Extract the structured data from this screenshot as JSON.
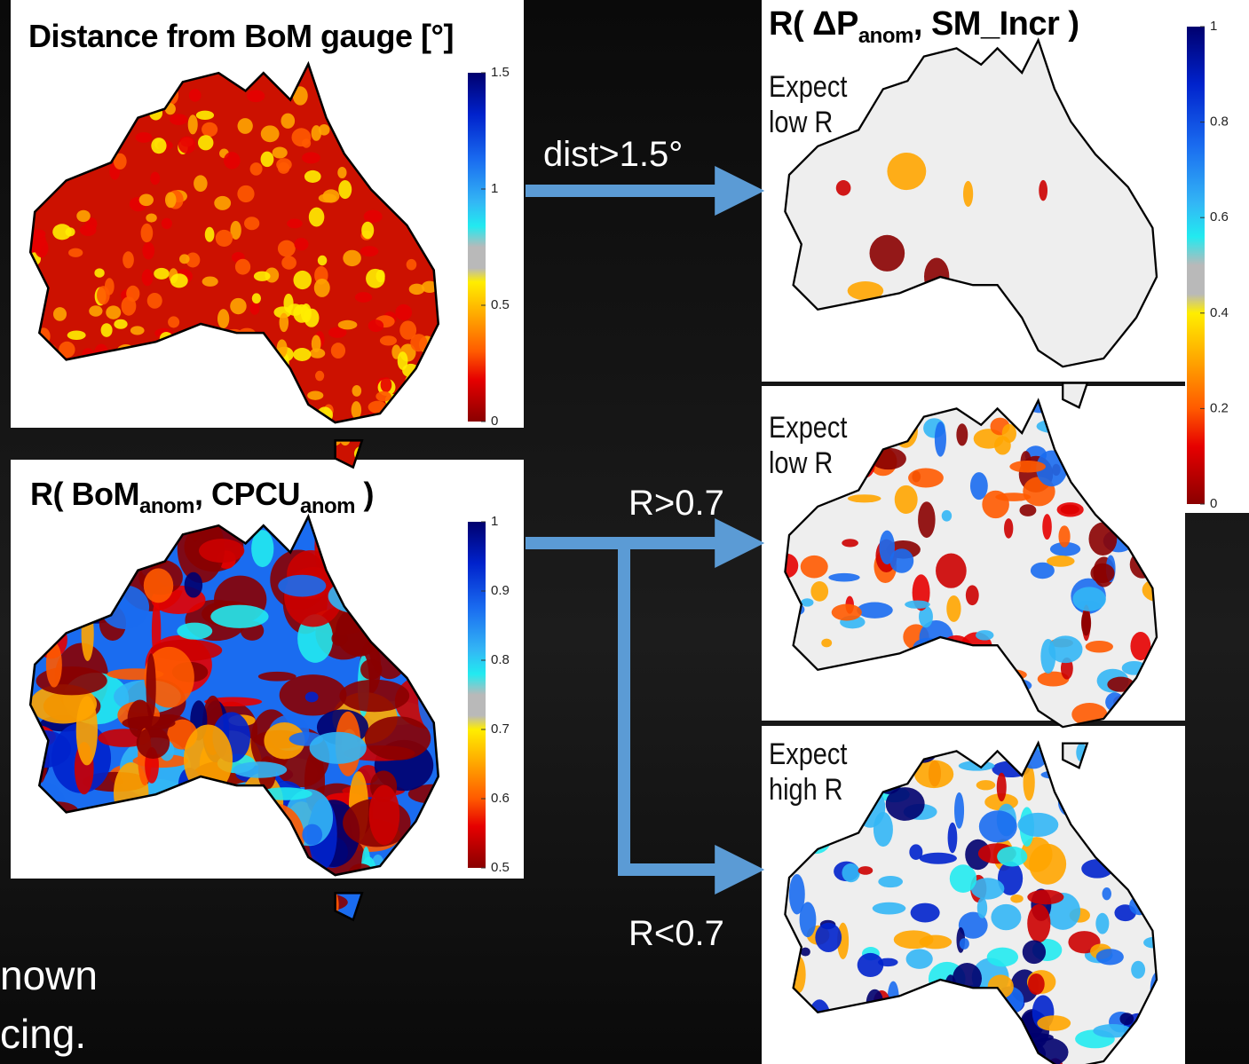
{
  "left_panels": [
    {
      "title_parts": [
        "Distance from BoM gauge [°]"
      ],
      "colorbar_ticks": [
        1.5,
        1,
        0.5,
        0
      ]
    },
    {
      "title_parts": [
        "R( BoM",
        "anom",
        ", CPCU",
        "anom",
        " )"
      ],
      "colorbar_ticks": [
        1,
        0.9,
        0.8,
        0.7,
        0.6,
        0.5
      ]
    }
  ],
  "right_title_parts": [
    "R( ΔP",
    "anom",
    ", SM_Incr )"
  ],
  "right_colorbar_ticks": [
    1,
    0.8,
    0.6,
    0.4,
    0.2,
    0
  ],
  "right_panels": [
    {
      "note": [
        "Expect",
        "low R"
      ]
    },
    {
      "note": [
        "Expect",
        "low R"
      ]
    },
    {
      "note": [
        "Expect",
        "high R"
      ]
    }
  ],
  "arrows": [
    "dist>1.5°",
    "R>0.7",
    "R<0.7"
  ],
  "body_text": [
    "nown",
    "cing."
  ]
}
